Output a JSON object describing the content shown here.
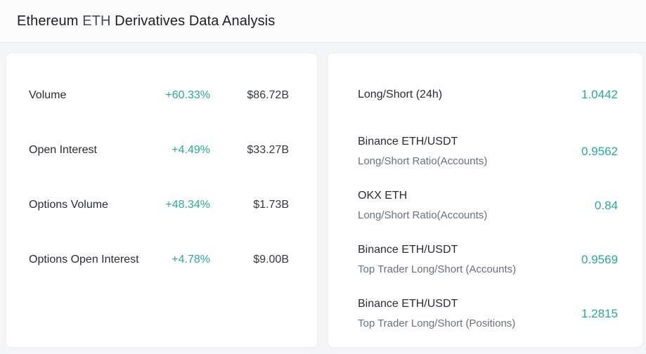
{
  "title": {
    "coin": "Ethereum",
    "symbol": "ETH",
    "rest": "Derivatives Data Analysis"
  },
  "colors": {
    "accent_teal": "#2ba895",
    "card_background": "#ffffff",
    "page_background": "#f4f5f6",
    "primary_text": "#292d33",
    "secondary_text": "#697079"
  },
  "left_card": {
    "rows": [
      {
        "label": "Volume",
        "change": "+60.33%",
        "value": "$86.72B"
      },
      {
        "label": "Open Interest",
        "change": "+4.49%",
        "value": "$33.27B"
      },
      {
        "label": "Options Volume",
        "change": "+48.34%",
        "value": "$1.73B"
      },
      {
        "label": "Options Open Interest",
        "change": "+4.78%",
        "value": "$9.00B"
      }
    ]
  },
  "right_card": {
    "rows": [
      {
        "title": "Long/Short (24h)",
        "subtitle": "",
        "value": "1.0442"
      },
      {
        "title": "Binance ETH/USDT",
        "subtitle": "Long/Short Ratio(Accounts)",
        "value": "0.9562"
      },
      {
        "title": "OKX ETH",
        "subtitle": "Long/Short Ratio(Accounts)",
        "value": "0.84"
      },
      {
        "title": "Binance ETH/USDT",
        "subtitle": "Top Trader Long/Short (Accounts)",
        "value": "0.9569"
      },
      {
        "title": "Binance ETH/USDT",
        "subtitle": "Top Trader Long/Short (Positions)",
        "value": "1.2815"
      }
    ]
  }
}
